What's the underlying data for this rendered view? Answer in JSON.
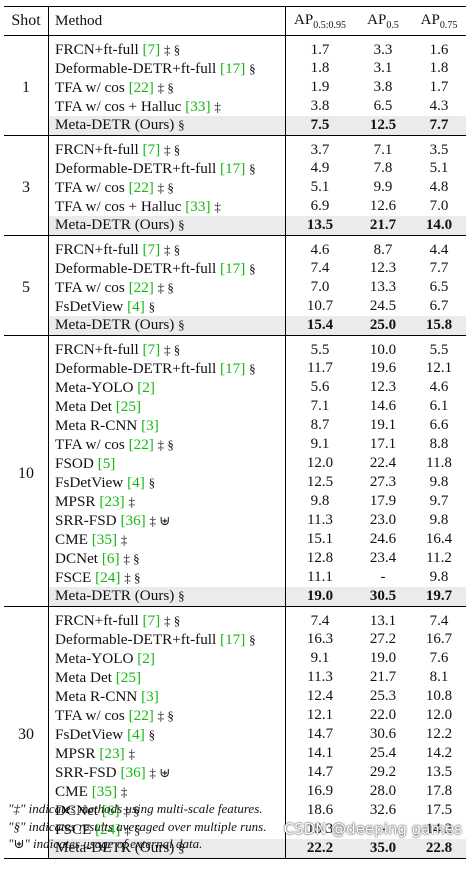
{
  "headers": {
    "shot": "Shot",
    "method": "Method",
    "ap_mid": "AP",
    "ap_mid_sub": "0.5:0.95",
    "ap50": "AP",
    "ap50_sub": "0.5",
    "ap75": "AP",
    "ap75_sub": "0.75"
  },
  "groups": [
    {
      "shot": "1",
      "rows": [
        {
          "name": "FRCN+ft-full",
          "ref": "[7]",
          "tags": "‡ §",
          "v": [
            "1.7",
            "3.3",
            "1.6"
          ]
        },
        {
          "name": "Deformable-DETR+ft-full",
          "ref": "[17]",
          "tags": "§",
          "v": [
            "1.8",
            "3.1",
            "1.8"
          ]
        },
        {
          "name": "TFA w/ cos",
          "ref": "[22]",
          "tags": "‡ §",
          "v": [
            "1.9",
            "3.8",
            "1.7"
          ]
        },
        {
          "name": "TFA w/ cos + Halluc",
          "ref": "[33]",
          "tags": "‡",
          "v": [
            "3.8",
            "6.5",
            "4.3"
          ]
        },
        {
          "name": "Meta-DETR (Ours)",
          "ref": "",
          "tags": "§",
          "v": [
            "7.5",
            "12.5",
            "7.7"
          ],
          "hl": true
        }
      ]
    },
    {
      "shot": "3",
      "rows": [
        {
          "name": "FRCN+ft-full",
          "ref": "[7]",
          "tags": "‡ §",
          "v": [
            "3.7",
            "7.1",
            "3.5"
          ]
        },
        {
          "name": "Deformable-DETR+ft-full",
          "ref": "[17]",
          "tags": "§",
          "v": [
            "4.9",
            "7.8",
            "5.1"
          ]
        },
        {
          "name": "TFA w/ cos",
          "ref": "[22]",
          "tags": "‡ §",
          "v": [
            "5.1",
            "9.9",
            "4.8"
          ]
        },
        {
          "name": "TFA w/ cos + Halluc",
          "ref": "[33]",
          "tags": "‡",
          "v": [
            "6.9",
            "12.6",
            "7.0"
          ]
        },
        {
          "name": "Meta-DETR (Ours)",
          "ref": "",
          "tags": "§",
          "v": [
            "13.5",
            "21.7",
            "14.0"
          ],
          "hl": true
        }
      ]
    },
    {
      "shot": "5",
      "rows": [
        {
          "name": "FRCN+ft-full",
          "ref": "[7]",
          "tags": "‡ §",
          "v": [
            "4.6",
            "8.7",
            "4.4"
          ]
        },
        {
          "name": "Deformable-DETR+ft-full",
          "ref": "[17]",
          "tags": "§",
          "v": [
            "7.4",
            "12.3",
            "7.7"
          ]
        },
        {
          "name": "TFA w/ cos",
          "ref": "[22]",
          "tags": "‡ §",
          "v": [
            "7.0",
            "13.3",
            "6.5"
          ]
        },
        {
          "name": "FsDetView",
          "ref": "[4]",
          "tags": "§",
          "v": [
            "10.7",
            "24.5",
            "6.7"
          ]
        },
        {
          "name": "Meta-DETR (Ours)",
          "ref": "",
          "tags": "§",
          "v": [
            "15.4",
            "25.0",
            "15.8"
          ],
          "hl": true
        }
      ]
    },
    {
      "shot": "10",
      "rows": [
        {
          "name": "FRCN+ft-full",
          "ref": "[7]",
          "tags": "‡ §",
          "v": [
            "5.5",
            "10.0",
            "5.5"
          ]
        },
        {
          "name": "Deformable-DETR+ft-full",
          "ref": "[17]",
          "tags": "§",
          "v": [
            "11.7",
            "19.6",
            "12.1"
          ]
        },
        {
          "name": "Meta-YOLO",
          "ref": "[2]",
          "tags": "",
          "v": [
            "5.6",
            "12.3",
            "4.6"
          ]
        },
        {
          "name": "Meta Det",
          "ref": "[25]",
          "tags": "",
          "v": [
            "7.1",
            "14.6",
            "6.1"
          ]
        },
        {
          "name": "Meta R-CNN",
          "ref": "[3]",
          "tags": "",
          "v": [
            "8.7",
            "19.1",
            "6.6"
          ]
        },
        {
          "name": "TFA w/ cos",
          "ref": "[22]",
          "tags": "‡ §",
          "v": [
            "9.1",
            "17.1",
            "8.8"
          ]
        },
        {
          "name": "FSOD",
          "ref": "[5]",
          "tags": "",
          "v": [
            "12.0",
            "22.4",
            "11.8"
          ]
        },
        {
          "name": "FsDetView",
          "ref": "[4]",
          "tags": "§",
          "v": [
            "12.5",
            "27.3",
            "9.8"
          ]
        },
        {
          "name": "MPSR",
          "ref": "[23]",
          "tags": "‡",
          "v": [
            "9.8",
            "17.9",
            "9.7"
          ]
        },
        {
          "name": "SRR-FSD",
          "ref": "[36]",
          "tags": "‡ ⊎",
          "v": [
            "11.3",
            "23.0",
            "9.8"
          ]
        },
        {
          "name": "CME",
          "ref": "[35]",
          "tags": "‡",
          "v": [
            "15.1",
            "24.6",
            "16.4"
          ]
        },
        {
          "name": "DCNet",
          "ref": "[6]",
          "tags": "‡ §",
          "v": [
            "12.8",
            "23.4",
            "11.2"
          ]
        },
        {
          "name": "FSCE",
          "ref": "[24]",
          "tags": "‡ §",
          "v": [
            "11.1",
            "-",
            "9.8"
          ]
        },
        {
          "name": "Meta-DETR (Ours)",
          "ref": "",
          "tags": "§",
          "v": [
            "19.0",
            "30.5",
            "19.7"
          ],
          "hl": true
        }
      ]
    },
    {
      "shot": "30",
      "rows": [
        {
          "name": "FRCN+ft-full",
          "ref": "[7]",
          "tags": "‡ §",
          "v": [
            "7.4",
            "13.1",
            "7.4"
          ]
        },
        {
          "name": "Deformable-DETR+ft-full",
          "ref": "[17]",
          "tags": "§",
          "v": [
            "16.3",
            "27.2",
            "16.7"
          ]
        },
        {
          "name": "Meta-YOLO",
          "ref": "[2]",
          "tags": "",
          "v": [
            "9.1",
            "19.0",
            "7.6"
          ]
        },
        {
          "name": "Meta Det",
          "ref": "[25]",
          "tags": "",
          "v": [
            "11.3",
            "21.7",
            "8.1"
          ]
        },
        {
          "name": "Meta R-CNN",
          "ref": "[3]",
          "tags": "",
          "v": [
            "12.4",
            "25.3",
            "10.8"
          ]
        },
        {
          "name": "TFA w/ cos",
          "ref": "[22]",
          "tags": "‡ §",
          "v": [
            "12.1",
            "22.0",
            "12.0"
          ]
        },
        {
          "name": "FsDetView",
          "ref": "[4]",
          "tags": "§",
          "v": [
            "14.7",
            "30.6",
            "12.2"
          ]
        },
        {
          "name": "MPSR",
          "ref": "[23]",
          "tags": "‡",
          "v": [
            "14.1",
            "25.4",
            "14.2"
          ]
        },
        {
          "name": "SRR-FSD",
          "ref": "[36]",
          "tags": "‡ ⊎",
          "v": [
            "14.7",
            "29.2",
            "13.5"
          ]
        },
        {
          "name": "CME",
          "ref": "[35]",
          "tags": "‡",
          "v": [
            "16.9",
            "28.0",
            "17.8"
          ]
        },
        {
          "name": "DCNet",
          "ref": "[6]",
          "tags": "‡ §",
          "v": [
            "18.6",
            "32.6",
            "17.5"
          ]
        },
        {
          "name": "FSCE",
          "ref": "[24]",
          "tags": "‡ §",
          "v": [
            "15.3",
            "-",
            "14.2"
          ]
        },
        {
          "name": "Meta-DETR (Ours)",
          "ref": "",
          "tags": "§",
          "v": [
            "22.2",
            "35.0",
            "22.8"
          ],
          "hl": true
        }
      ]
    }
  ],
  "footnotes": [
    "\"‡\" indicates methods using multi-scale features.",
    "\"§\" indicates results averaged over multiple runs.",
    "\"⊎\" indicates usage of external data."
  ],
  "watermark": "CSDN @deeping games",
  "colors": {
    "reference": "#14b814",
    "highlight_row": "#ebebeb"
  }
}
